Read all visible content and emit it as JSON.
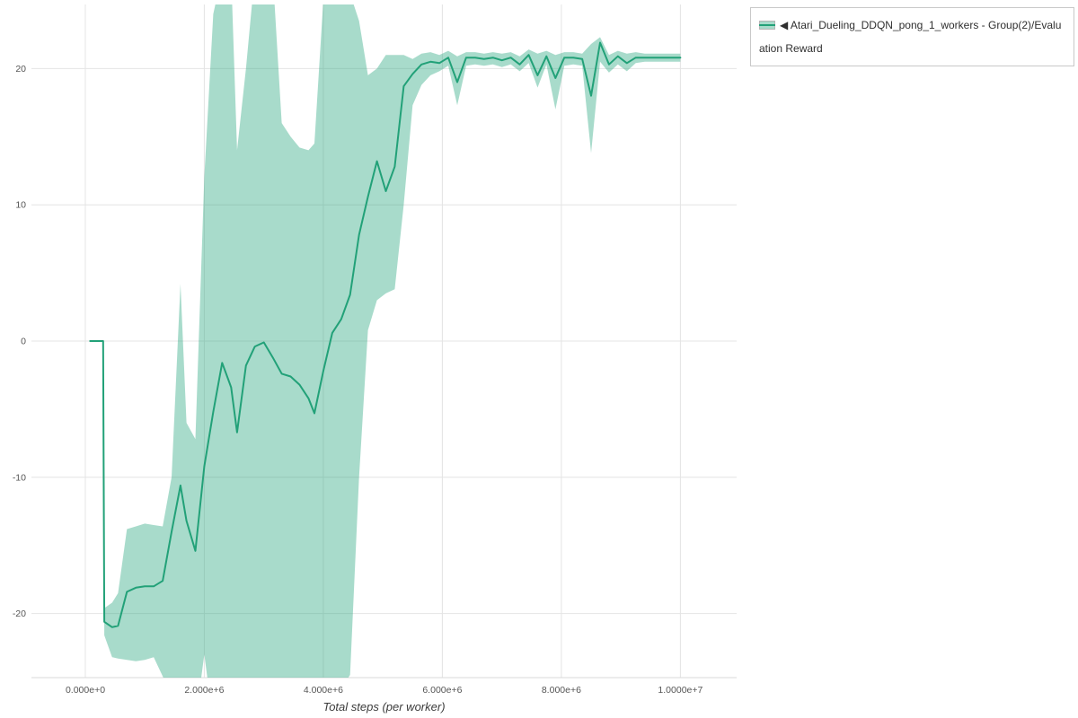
{
  "legend": {
    "collapse_icon": "◀",
    "series_label": "Atari_Dueling_DDQN_pong_1_workers - Group(2)/Evaluation Reward"
  },
  "axes": {
    "x_label": "Total steps (per worker)"
  },
  "chart_data": {
    "type": "line",
    "title": "",
    "xlabel": "Total steps (per worker)",
    "ylabel": "",
    "grid": true,
    "legend_position": "top-right",
    "xlim": [
      -905000,
      10945000
    ],
    "ylim": [
      -24.7,
      24.7
    ],
    "x_ticks": [
      {
        "v": 0,
        "label": "0.000e+0"
      },
      {
        "v": 2000000,
        "label": "2.000e+6"
      },
      {
        "v": 4000000,
        "label": "4.000e+6"
      },
      {
        "v": 6000000,
        "label": "6.000e+6"
      },
      {
        "v": 8000000,
        "label": "8.000e+6"
      },
      {
        "v": 10000000,
        "label": "1.0000e+7"
      }
    ],
    "y_ticks": [
      {
        "v": -20,
        "label": "-20"
      },
      {
        "v": -10,
        "label": "-10"
      },
      {
        "v": 0,
        "label": "0"
      },
      {
        "v": 10,
        "label": "10"
      },
      {
        "v": 20,
        "label": "20"
      }
    ],
    "colors": {
      "line": "#22a178",
      "band": "rgba(38,164,124,0.40)",
      "grid": "#e4e4e4",
      "axis": "#d9d9d9",
      "tick_text": "#555555"
    },
    "series": [
      {
        "name": "Atari_Dueling_DDQN_pong_1_workers - Group(2)/Evaluation Reward",
        "x": [
          80000,
          300000,
          320000,
          450000,
          550000,
          700000,
          850000,
          1000000,
          1150000,
          1300000,
          1450000,
          1600000,
          1700000,
          1850000,
          2000000,
          2150000,
          2300000,
          2450000,
          2550000,
          2700000,
          2850000,
          3000000,
          3150000,
          3300000,
          3450000,
          3600000,
          3750000,
          3850000,
          4000000,
          4150000,
          4300000,
          4450000,
          4600000,
          4750000,
          4900000,
          5050000,
          5200000,
          5350000,
          5500000,
          5650000,
          5800000,
          5950000,
          6100000,
          6250000,
          6400000,
          6550000,
          6700000,
          6850000,
          7000000,
          7150000,
          7300000,
          7450000,
          7600000,
          7750000,
          7900000,
          8050000,
          8200000,
          8350000,
          8500000,
          8650000,
          8800000,
          8950000,
          9100000,
          9250000,
          9400000,
          9600000,
          9800000,
          10000000
        ],
        "mean": [
          0,
          0,
          -20.6,
          -21.0,
          -20.9,
          -18.4,
          -18.1,
          -18.0,
          -18.0,
          -17.6,
          -14.0,
          -10.6,
          -13.2,
          -15.4,
          -9.2,
          -5.2,
          -1.6,
          -3.4,
          -6.7,
          -1.8,
          -0.4,
          -0.1,
          -1.2,
          -2.4,
          -2.6,
          -3.2,
          -4.2,
          -5.3,
          -2.2,
          0.6,
          1.6,
          3.4,
          7.8,
          10.6,
          13.2,
          11.0,
          12.8,
          18.7,
          19.6,
          20.3,
          20.5,
          20.4,
          20.8,
          19.0,
          20.8,
          20.8,
          20.7,
          20.8,
          20.6,
          20.8,
          20.3,
          21.0,
          19.5,
          20.9,
          19.3,
          20.8,
          20.8,
          20.7,
          18.0,
          21.9,
          20.3,
          20.9,
          20.4,
          20.8,
          20.8,
          20.8,
          20.8,
          20.8
        ],
        "band_lower": [
          0,
          0,
          -21.6,
          -23.2,
          -23.3,
          -23.4,
          -23.5,
          -23.4,
          -23.2,
          -24.6,
          -26.0,
          -27.0,
          -27.5,
          -28.0,
          -23.0,
          -28.0,
          -28.0,
          -27.5,
          -27.0,
          -27.5,
          -28.0,
          -28.0,
          -27.5,
          -27.0,
          -27.0,
          -27.0,
          -27.0,
          -27.0,
          -26.5,
          -26.0,
          -25.5,
          -24.5,
          -10.0,
          0.8,
          3.0,
          3.5,
          3.8,
          10.0,
          17.3,
          18.8,
          19.5,
          19.8,
          20.2,
          17.3,
          20.2,
          20.3,
          20.2,
          20.3,
          20.1,
          20.3,
          19.8,
          20.4,
          18.6,
          20.3,
          17.0,
          20.2,
          20.3,
          20.2,
          13.8,
          20.5,
          19.7,
          20.3,
          19.8,
          20.4,
          20.5,
          20.5,
          20.5,
          20.5
        ],
        "band_upper": [
          0,
          0,
          -19.6,
          -19.2,
          -18.5,
          -13.8,
          -13.6,
          -13.4,
          -13.5,
          -13.6,
          -10.0,
          4.2,
          -6.0,
          -7.2,
          12.0,
          24.0,
          27.0,
          27.0,
          14.0,
          20.0,
          27.0,
          27.0,
          27.0,
          16.0,
          15.0,
          14.2,
          14.0,
          14.5,
          25.0,
          27.0,
          26.5,
          25.5,
          23.5,
          19.5,
          20.0,
          21.0,
          21.0,
          21.0,
          20.7,
          21.1,
          21.2,
          21.0,
          21.3,
          20.9,
          21.2,
          21.2,
          21.1,
          21.2,
          21.1,
          21.2,
          20.9,
          21.4,
          21.1,
          21.3,
          21.0,
          21.2,
          21.2,
          21.1,
          21.8,
          22.3,
          21.0,
          21.3,
          21.1,
          21.2,
          21.1,
          21.1,
          21.1,
          21.1
        ]
      }
    ]
  }
}
